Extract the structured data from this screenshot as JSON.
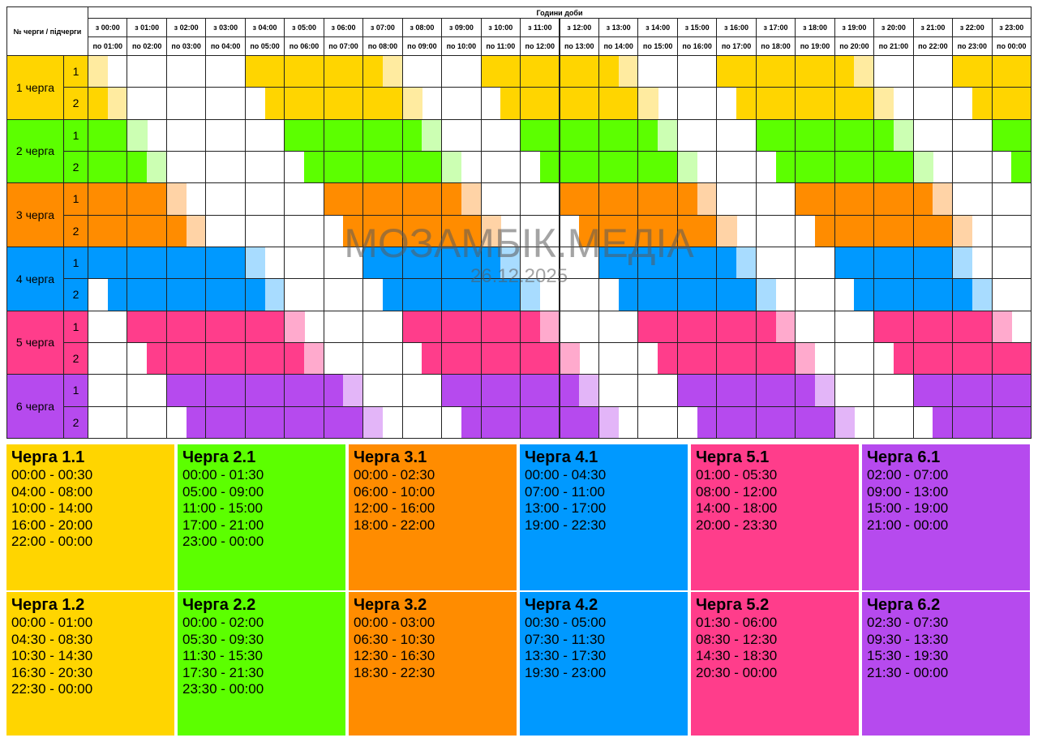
{
  "table": {
    "corner": "№ черги / підчерги",
    "hours_title": "Години доби",
    "from": [
      "з 00:00",
      "з 01:00",
      "з 02:00",
      "з 03:00",
      "з 04:00",
      "з 05:00",
      "з 06:00",
      "з 07:00",
      "з 08:00",
      "з 09:00",
      "з 10:00",
      "з 11:00",
      "з 12:00",
      "з 13:00",
      "з 14:00",
      "з 15:00",
      "з 16:00",
      "з 17:00",
      "з 18:00",
      "з 19:00",
      "з 20:00",
      "з 21:00",
      "з 22:00",
      "з 23:00"
    ],
    "to": [
      "по 01:00",
      "по 02:00",
      "по 03:00",
      "по 04:00",
      "по 05:00",
      "по 06:00",
      "по 07:00",
      "по 08:00",
      "по 09:00",
      "по 10:00",
      "по 11:00",
      "по 12:00",
      "по 13:00",
      "по 14:00",
      "по 15:00",
      "по 16:00",
      "по 17:00",
      "по 18:00",
      "по 19:00",
      "по 20:00",
      "по 21:00",
      "по 22:00",
      "по 23:00",
      "по 00:00"
    ],
    "queues": [
      {
        "label": "1 черга",
        "color": "#ffd500",
        "light": "#ffeba0",
        "subs": [
          {
            "label": "1",
            "card": "Черга 1.1",
            "intervals": [
              "00:00 - 00:30",
              "04:00 - 08:00",
              "10:00 - 14:00",
              "16:00 - 20:00",
              "22:00 - 00:00"
            ]
          },
          {
            "label": "2",
            "card": "Черга 1.2",
            "intervals": [
              "00:00 - 01:00",
              "04:30 - 08:30",
              "10:30 - 14:30",
              "16:30 - 20:30",
              "22:30 - 00:00"
            ]
          }
        ]
      },
      {
        "label": "2 черга",
        "color": "#5cff00",
        "light": "#ccffb3",
        "subs": [
          {
            "label": "1",
            "card": "Черга 2.1",
            "intervals": [
              "00:00 - 01:30",
              "05:00 - 09:00",
              "11:00 - 15:00",
              "17:00 - 21:00",
              "23:00 - 00:00"
            ]
          },
          {
            "label": "2",
            "card": "Черга 2.2",
            "intervals": [
              "00:00 - 02:00",
              "05:30 - 09:30",
              "11:30 - 15:30",
              "17:30 - 21:30",
              "23:30 - 00:00"
            ]
          }
        ]
      },
      {
        "label": "3 черга",
        "color": "#ff8c00",
        "light": "#ffd3a6",
        "subs": [
          {
            "label": "1",
            "card": "Черга 3.1",
            "intervals": [
              "00:00 - 02:30",
              "06:00 - 10:00",
              "12:00 - 16:00",
              "18:00 - 22:00"
            ]
          },
          {
            "label": "2",
            "card": "Черга 3.2",
            "intervals": [
              "00:00 - 03:00",
              "06:30 - 10:30",
              "12:30 - 16:30",
              "18:30 - 22:30"
            ]
          }
        ]
      },
      {
        "label": "4 черга",
        "color": "#0099ff",
        "light": "#a8dcff",
        "subs": [
          {
            "label": "1",
            "card": "Черга 4.1",
            "intervals": [
              "00:00 - 04:30",
              "07:00 - 11:00",
              "13:00 - 17:00",
              "19:00 - 22:30"
            ]
          },
          {
            "label": "2",
            "card": "Черга 4.2",
            "intervals": [
              "00:30 - 05:00",
              "07:30 - 11:30",
              "13:30 - 17:30",
              "19:30 - 23:00"
            ]
          }
        ]
      },
      {
        "label": "5 черга",
        "color": "#ff3d8b",
        "light": "#ffaacd",
        "subs": [
          {
            "label": "1",
            "card": "Черга 5.1",
            "intervals": [
              "01:00 - 05:30",
              "08:00 - 12:00",
              "14:00 - 18:00",
              "20:00 - 23:30"
            ]
          },
          {
            "label": "2",
            "card": "Черга 5.2",
            "intervals": [
              "01:30 - 06:00",
              "08:30 - 12:30",
              "14:30 - 18:30",
              "20:30 - 00:00"
            ]
          }
        ]
      },
      {
        "label": "6 черга",
        "color": "#b64aee",
        "light": "#e3b5f8",
        "subs": [
          {
            "label": "1",
            "card": "Черга 6.1",
            "intervals": [
              "02:00 - 07:00",
              "09:00 - 13:00",
              "15:00 - 19:00",
              "21:00 - 00:00"
            ]
          },
          {
            "label": "2",
            "card": "Черга 6.2",
            "intervals": [
              "02:30 - 07:30",
              "09:30 - 13:30",
              "15:30 - 19:30",
              "21:30 - 00:00"
            ]
          }
        ]
      }
    ]
  },
  "watermark": {
    "name": "МОЗАМБІК.МЕДІА",
    "date": "26.12.2025"
  }
}
